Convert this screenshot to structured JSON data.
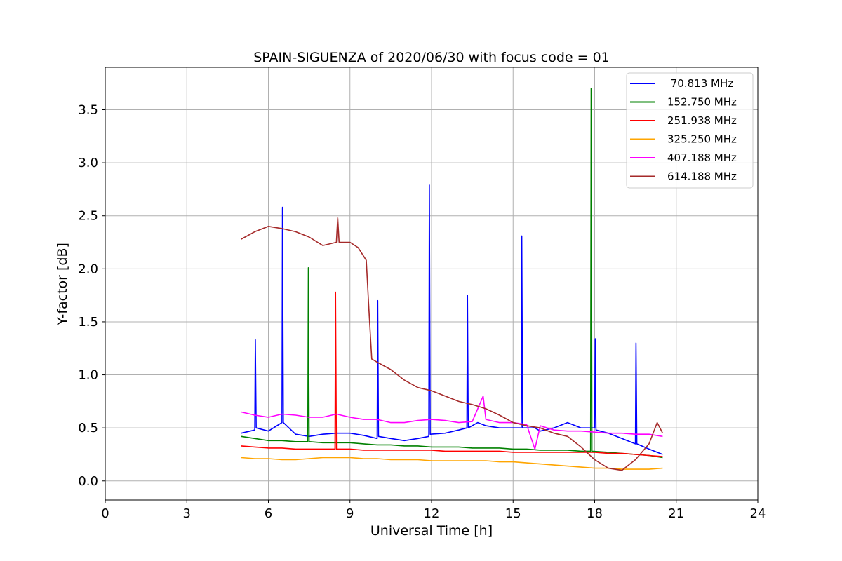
{
  "chart_data": {
    "type": "line",
    "title": "SPAIN-SIGUENZA of 2020/06/30 with focus code = 01",
    "xlabel": "Universal Time [h]",
    "ylabel": "Y-factor [dB]",
    "xlim": [
      0,
      24
    ],
    "ylim": [
      -0.18,
      3.9
    ],
    "xticks": [
      0,
      3,
      6,
      9,
      12,
      15,
      18,
      21,
      24
    ],
    "xtick_labels": [
      "0",
      "3",
      "6",
      "9",
      "12",
      "15",
      "18",
      "21",
      "24"
    ],
    "yticks": [
      0.0,
      0.5,
      1.0,
      1.5,
      2.0,
      2.5,
      3.0,
      3.5
    ],
    "ytick_labels": [
      "0.0",
      "0.5",
      "1.0",
      "1.5",
      "2.0",
      "2.5",
      "3.0",
      "3.5"
    ],
    "grid": true,
    "legend_position": "top-right",
    "series": [
      {
        "name": " 70.813 MHz",
        "color": "#0000ff",
        "x": [
          5.0,
          5.5,
          5.52,
          5.55,
          6.0,
          6.5,
          6.52,
          6.55,
          7.0,
          7.5,
          8.0,
          8.5,
          9.0,
          9.5,
          10.0,
          10.02,
          10.05,
          10.5,
          11.0,
          11.5,
          11.9,
          11.92,
          11.95,
          12.5,
          13.0,
          13.3,
          13.32,
          13.35,
          13.7,
          14.0,
          14.5,
          15.0,
          15.3,
          15.32,
          15.35,
          15.8,
          16.0,
          16.5,
          17.0,
          17.5,
          18.0,
          18.02,
          18.05,
          18.5,
          19.0,
          19.5,
          19.52,
          19.55,
          20.0,
          20.5
        ],
        "y": [
          0.45,
          0.48,
          1.33,
          0.5,
          0.47,
          0.55,
          2.58,
          0.55,
          0.44,
          0.42,
          0.44,
          0.45,
          0.45,
          0.43,
          0.4,
          1.7,
          0.42,
          0.4,
          0.38,
          0.4,
          0.42,
          2.79,
          0.44,
          0.45,
          0.48,
          0.5,
          1.75,
          0.5,
          0.55,
          0.52,
          0.5,
          0.5,
          0.5,
          2.31,
          0.5,
          0.5,
          0.47,
          0.5,
          0.55,
          0.5,
          0.5,
          1.34,
          0.48,
          0.45,
          0.4,
          0.35,
          1.3,
          0.35,
          0.3,
          0.25
        ]
      },
      {
        "name": "152.750 MHz",
        "color": "#008000",
        "x": [
          5.0,
          5.5,
          6.0,
          6.5,
          7.0,
          7.45,
          7.47,
          7.5,
          8.0,
          8.5,
          9.0,
          9.5,
          10.0,
          10.5,
          11.0,
          11.5,
          12.0,
          12.5,
          13.0,
          13.5,
          14.0,
          14.5,
          15.0,
          15.5,
          16.0,
          16.5,
          17.0,
          17.5,
          17.85,
          17.87,
          17.9,
          18.5,
          19.0,
          19.5,
          20.0,
          20.5
        ],
        "y": [
          0.42,
          0.4,
          0.38,
          0.38,
          0.37,
          0.37,
          2.01,
          0.37,
          0.36,
          0.36,
          0.36,
          0.35,
          0.34,
          0.34,
          0.33,
          0.33,
          0.32,
          0.32,
          0.32,
          0.31,
          0.31,
          0.31,
          0.3,
          0.3,
          0.29,
          0.29,
          0.29,
          0.28,
          0.28,
          3.7,
          0.28,
          0.27,
          0.26,
          0.25,
          0.24,
          0.22
        ]
      },
      {
        "name": "251.938 MHz",
        "color": "#ff0000",
        "x": [
          5.0,
          5.5,
          6.0,
          6.5,
          7.0,
          7.5,
          8.0,
          8.45,
          8.47,
          8.5,
          9.0,
          9.5,
          10.0,
          10.5,
          11.0,
          11.5,
          12.0,
          12.5,
          13.0,
          13.5,
          14.0,
          14.5,
          15.0,
          15.5,
          16.0,
          16.5,
          17.0,
          17.5,
          18.0,
          18.5,
          19.0,
          19.5,
          20.0,
          20.5
        ],
        "y": [
          0.33,
          0.32,
          0.31,
          0.31,
          0.3,
          0.3,
          0.3,
          0.3,
          1.78,
          0.3,
          0.3,
          0.29,
          0.29,
          0.29,
          0.29,
          0.29,
          0.29,
          0.28,
          0.28,
          0.28,
          0.28,
          0.28,
          0.27,
          0.27,
          0.27,
          0.27,
          0.27,
          0.27,
          0.27,
          0.26,
          0.26,
          0.25,
          0.24,
          0.23
        ]
      },
      {
        "name": "325.250 MHz",
        "color": "#ffa500",
        "x": [
          5.0,
          5.5,
          6.0,
          6.5,
          7.0,
          7.5,
          8.0,
          8.5,
          9.0,
          9.5,
          10.0,
          10.5,
          11.0,
          11.5,
          12.0,
          12.5,
          13.0,
          13.5,
          14.0,
          14.5,
          15.0,
          15.5,
          16.0,
          16.5,
          17.0,
          17.5,
          18.0,
          18.5,
          19.0,
          19.5,
          20.0,
          20.5
        ],
        "y": [
          0.22,
          0.21,
          0.21,
          0.2,
          0.2,
          0.21,
          0.22,
          0.22,
          0.22,
          0.21,
          0.21,
          0.2,
          0.2,
          0.2,
          0.19,
          0.19,
          0.19,
          0.19,
          0.19,
          0.18,
          0.18,
          0.17,
          0.16,
          0.15,
          0.14,
          0.13,
          0.12,
          0.12,
          0.11,
          0.11,
          0.11,
          0.12
        ]
      },
      {
        "name": "407.188 MHz",
        "color": "#ff00ff",
        "x": [
          5.0,
          5.5,
          6.0,
          6.5,
          7.0,
          7.5,
          8.0,
          8.5,
          9.0,
          9.5,
          10.0,
          10.5,
          11.0,
          11.5,
          12.0,
          12.5,
          13.0,
          13.5,
          13.9,
          14.0,
          14.5,
          15.0,
          15.5,
          15.8,
          16.0,
          16.5,
          17.0,
          17.5,
          18.0,
          18.5,
          19.0,
          19.5,
          20.0,
          20.5
        ],
        "y": [
          0.65,
          0.62,
          0.6,
          0.63,
          0.62,
          0.6,
          0.6,
          0.63,
          0.6,
          0.58,
          0.58,
          0.55,
          0.55,
          0.57,
          0.58,
          0.57,
          0.55,
          0.56,
          0.8,
          0.58,
          0.55,
          0.55,
          0.53,
          0.3,
          0.52,
          0.48,
          0.47,
          0.47,
          0.46,
          0.45,
          0.45,
          0.44,
          0.44,
          0.42
        ]
      },
      {
        "name": "614.188 MHz",
        "color": "#a52a2a",
        "x": [
          5.0,
          5.5,
          6.0,
          6.5,
          7.0,
          7.5,
          8.0,
          8.5,
          8.55,
          8.6,
          9.0,
          9.3,
          9.6,
          9.7,
          9.8,
          10.0,
          10.5,
          11.0,
          11.5,
          12.0,
          12.5,
          13.0,
          13.5,
          14.0,
          14.5,
          15.0,
          15.5,
          16.0,
          16.5,
          17.0,
          17.5,
          18.0,
          18.5,
          19.0,
          19.5,
          20.0,
          20.3,
          20.5
        ],
        "y": [
          2.28,
          2.35,
          2.4,
          2.38,
          2.35,
          2.3,
          2.22,
          2.25,
          2.48,
          2.25,
          2.25,
          2.2,
          2.08,
          1.6,
          1.15,
          1.12,
          1.05,
          0.95,
          0.88,
          0.85,
          0.8,
          0.75,
          0.72,
          0.68,
          0.62,
          0.55,
          0.52,
          0.5,
          0.45,
          0.42,
          0.32,
          0.2,
          0.12,
          0.1,
          0.2,
          0.35,
          0.55,
          0.45
        ]
      }
    ]
  }
}
